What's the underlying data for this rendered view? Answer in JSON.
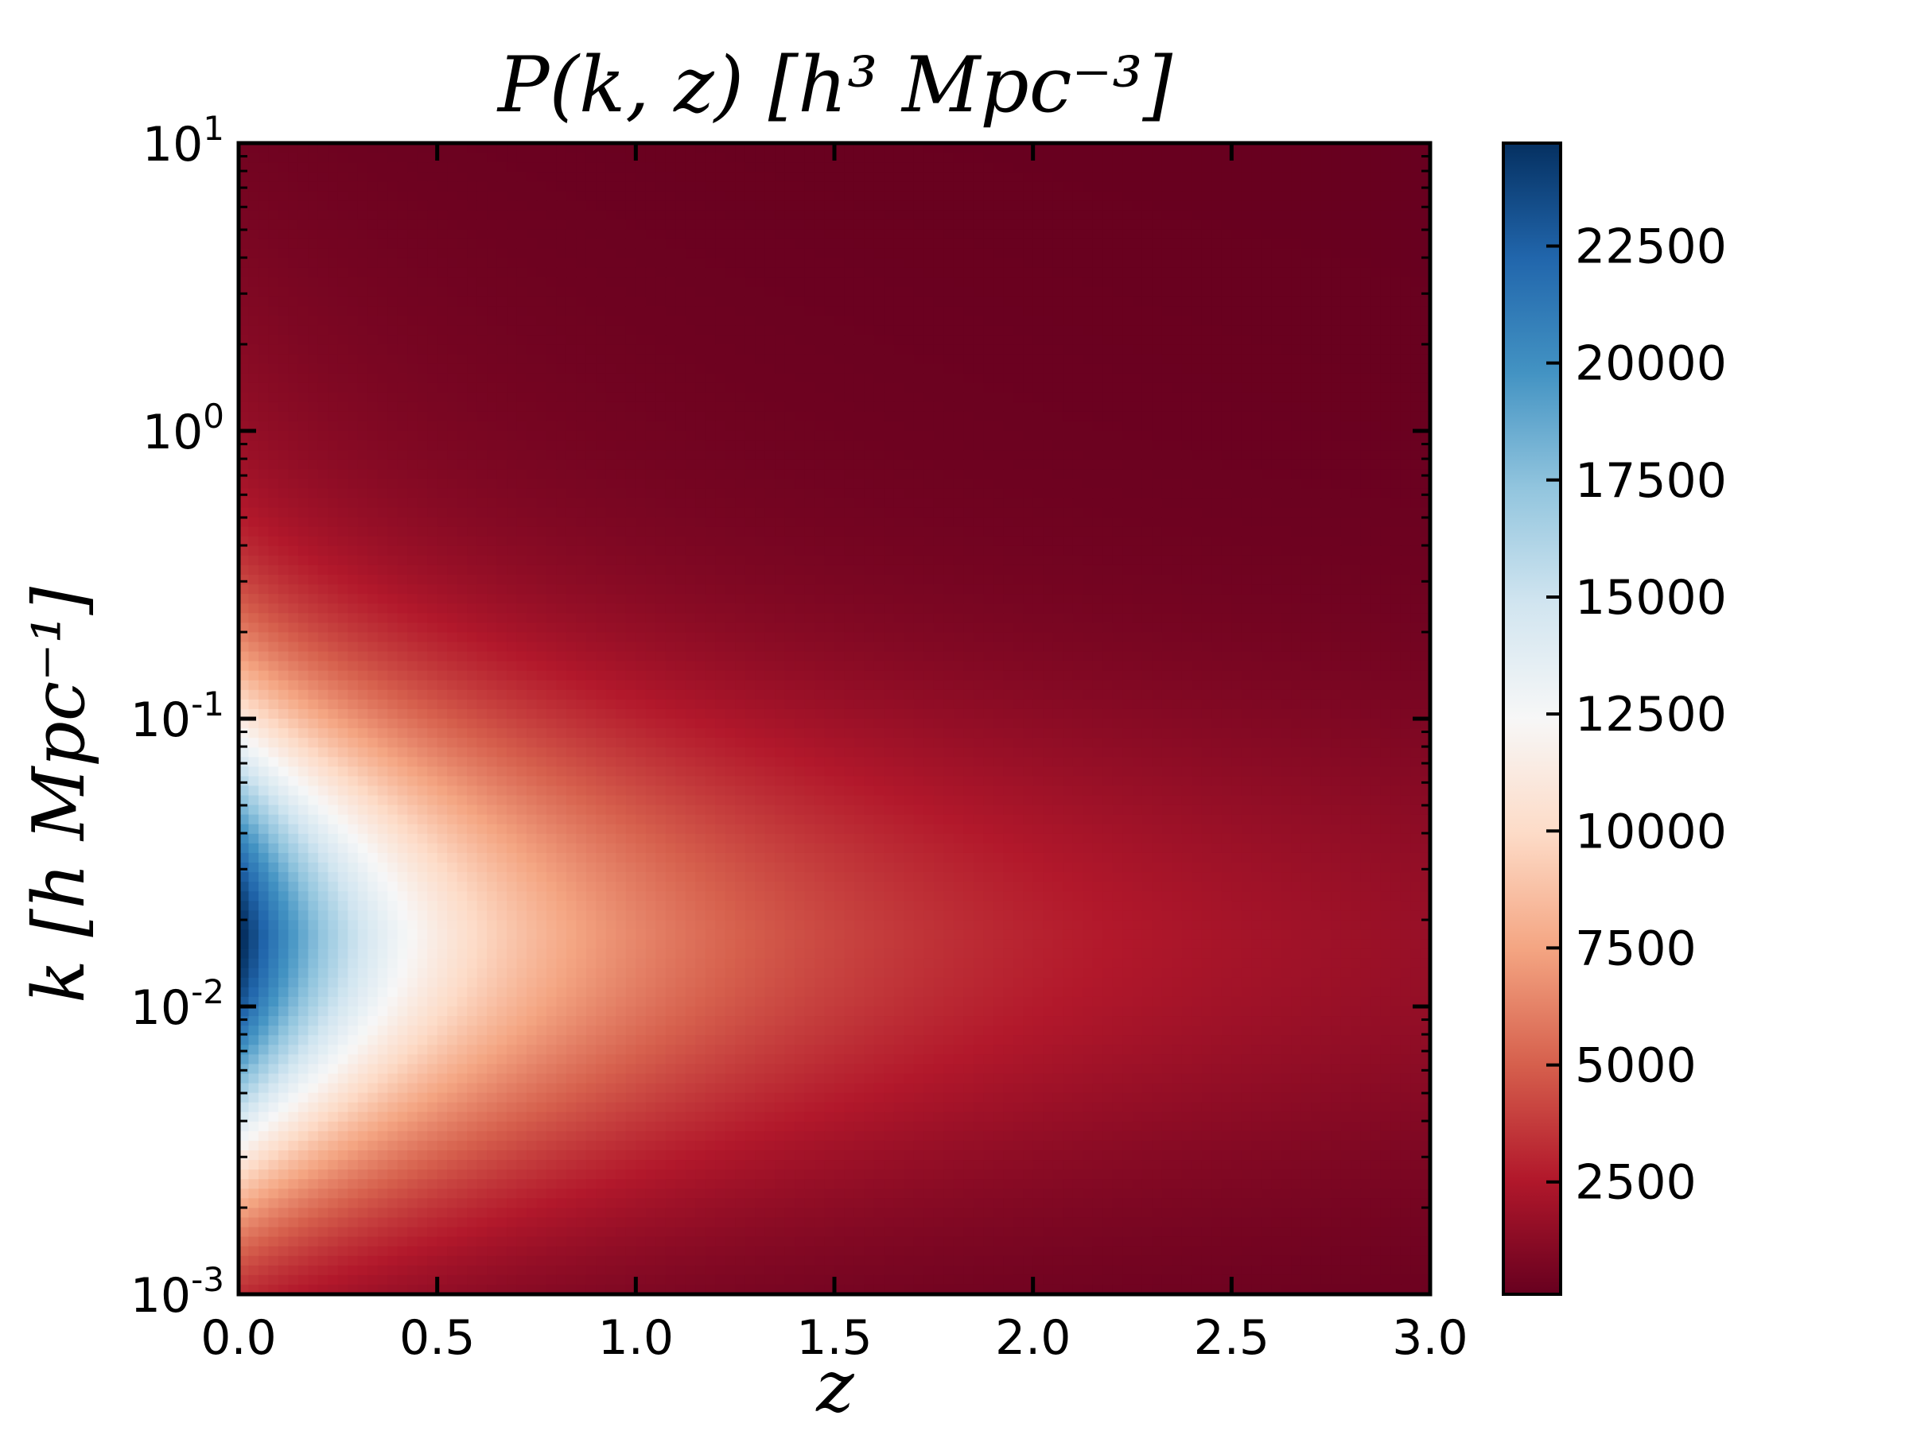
{
  "chart_data": {
    "type": "heatmap",
    "title": "P(k, z) [h³ Mpc⁻³]",
    "xlabel": "z",
    "ylabel": "k [h Mpc⁻¹]",
    "x_range": [
      0.0,
      3.0
    ],
    "y_range": [
      0.001,
      10
    ],
    "y_scale": "log",
    "x_ticks": [
      "0.0",
      "0.5",
      "1.0",
      "1.5",
      "2.0",
      "2.5",
      "3.0"
    ],
    "y_ticks": [
      {
        "value": 0.001,
        "base": "10",
        "exp": "-3"
      },
      {
        "value": 0.01,
        "base": "10",
        "exp": "-2"
      },
      {
        "value": 0.1,
        "base": "10",
        "exp": "-1"
      },
      {
        "value": 1,
        "base": "10",
        "exp": "0"
      },
      {
        "value": 10,
        "base": "10",
        "exp": "1"
      }
    ],
    "colorbar": {
      "colormap": "RdBu",
      "range": [
        100,
        24700
      ],
      "ticks": [
        "2500",
        "5000",
        "7500",
        "10000",
        "12500",
        "15000",
        "17500",
        "20000",
        "22500"
      ],
      "tick_values": [
        2500,
        5000,
        7500,
        10000,
        12500,
        15000,
        17500,
        20000,
        22500
      ]
    },
    "peak": {
      "z": 0.0,
      "k": 0.018,
      "value": 24700
    },
    "grid": false
  }
}
